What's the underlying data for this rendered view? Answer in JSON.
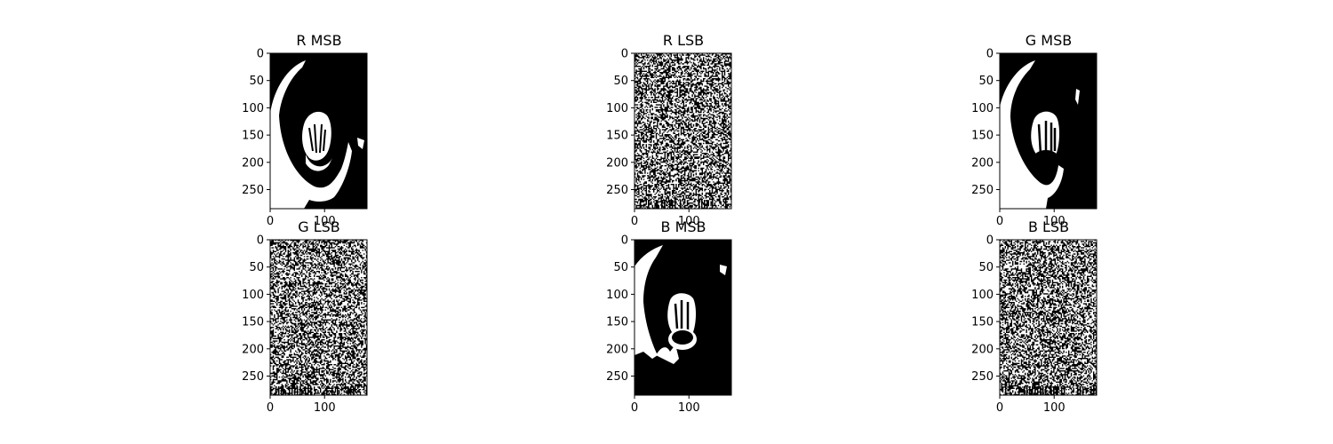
{
  "chart_data": [
    {
      "type": "image",
      "title": "R MSB",
      "image_kind": "msb",
      "channel": "R",
      "ylim": [
        285,
        0
      ],
      "xlim": [
        0,
        178
      ],
      "yticks": [
        "0",
        "50",
        "100",
        "150",
        "200",
        "250"
      ],
      "xticks": [
        "0",
        "100"
      ]
    },
    {
      "type": "image",
      "title": "R LSB",
      "image_kind": "lsb",
      "channel": "R",
      "ylim": [
        285,
        0
      ],
      "xlim": [
        0,
        178
      ],
      "yticks": [
        "0",
        "50",
        "100",
        "150",
        "200",
        "250"
      ],
      "xticks": [
        "0",
        "100"
      ]
    },
    {
      "type": "image",
      "title": "G MSB",
      "image_kind": "msb",
      "channel": "G",
      "ylim": [
        285,
        0
      ],
      "xlim": [
        0,
        178
      ],
      "yticks": [
        "0",
        "50",
        "100",
        "150",
        "200",
        "250"
      ],
      "xticks": [
        "0",
        "100"
      ]
    },
    {
      "type": "image",
      "title": "G LSB",
      "image_kind": "lsb",
      "channel": "G",
      "ylim": [
        285,
        0
      ],
      "xlim": [
        0,
        178
      ],
      "yticks": [
        "0",
        "50",
        "100",
        "150",
        "200",
        "250"
      ],
      "xticks": [
        "0",
        "100"
      ]
    },
    {
      "type": "image",
      "title": "B MSB",
      "image_kind": "msb",
      "channel": "B",
      "ylim": [
        285,
        0
      ],
      "xlim": [
        0,
        178
      ],
      "yticks": [
        "0",
        "50",
        "100",
        "150",
        "200",
        "250"
      ],
      "xticks": [
        "0",
        "100"
      ]
    },
    {
      "type": "image",
      "title": "B LSB",
      "image_kind": "lsb",
      "channel": "B",
      "ylim": [
        285,
        0
      ],
      "xlim": [
        0,
        178
      ],
      "yticks": [
        "0",
        "50",
        "100",
        "150",
        "200",
        "250"
      ],
      "xticks": [
        "0",
        "100"
      ]
    }
  ],
  "colors": {
    "foreground": "#ffffff",
    "background": "#000000",
    "axis": "#000000"
  }
}
